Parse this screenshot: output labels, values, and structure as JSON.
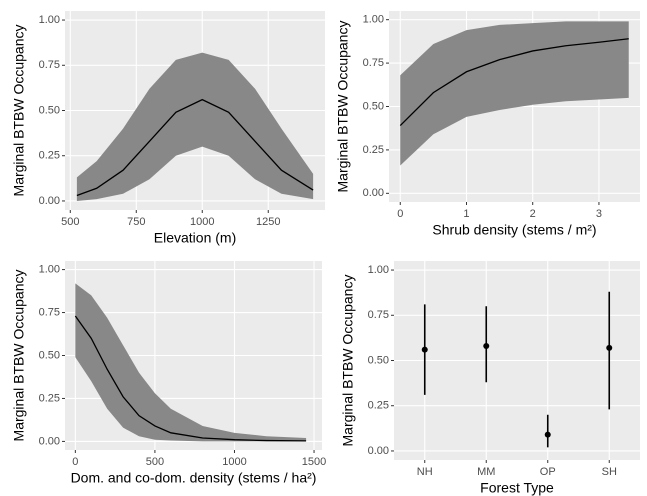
{
  "chart_data": [
    {
      "type": "line",
      "xlabel": "Elevation (m)",
      "ylabel": "Marginal BTBW Occupancy",
      "x": [
        525,
        600,
        700,
        800,
        900,
        1000,
        1100,
        1200,
        1300,
        1420
      ],
      "values": [
        0.03,
        0.07,
        0.17,
        0.33,
        0.49,
        0.56,
        0.49,
        0.33,
        0.17,
        0.06
      ],
      "lower": [
        0.0,
        0.01,
        0.04,
        0.12,
        0.25,
        0.3,
        0.25,
        0.12,
        0.04,
        0.01
      ],
      "upper": [
        0.13,
        0.22,
        0.4,
        0.62,
        0.78,
        0.82,
        0.78,
        0.62,
        0.4,
        0.15
      ],
      "color": "#000000",
      "band_color": "#888888",
      "xlim": [
        480,
        1465
      ],
      "xticks": [
        500,
        750,
        1000,
        1250
      ],
      "ylim": [
        -0.05,
        1.05
      ],
      "yticks": [
        {
          "value": 0,
          "label": "0.00"
        },
        {
          "value": 0.25,
          "label": "0.25"
        },
        {
          "value": 0.5,
          "label": "0.50"
        },
        {
          "value": 0.75,
          "label": "0.75"
        },
        {
          "value": 1,
          "label": "1.00"
        }
      ],
      "grid": true
    },
    {
      "type": "line",
      "xlabel": "Shrub density (stems / m²)",
      "ylabel": "Marginal BTBW Occupancy",
      "x": [
        0,
        0.5,
        1,
        1.5,
        2,
        2.5,
        3,
        3.45
      ],
      "values": [
        0.39,
        0.58,
        0.7,
        0.77,
        0.82,
        0.85,
        0.87,
        0.89
      ],
      "lower": [
        0.16,
        0.34,
        0.44,
        0.48,
        0.51,
        0.53,
        0.54,
        0.55
      ],
      "upper": [
        0.68,
        0.86,
        0.94,
        0.97,
        0.98,
        0.99,
        0.99,
        0.99
      ],
      "color": "#000000",
      "band_color": "#888888",
      "xlim": [
        -0.17,
        3.62
      ],
      "xticks": [
        0,
        1,
        2,
        3
      ],
      "ylim": [
        -0.05,
        1.05
      ],
      "yticks": [
        {
          "value": 0,
          "label": "0.00"
        },
        {
          "value": 0.25,
          "label": "0.25"
        },
        {
          "value": 0.5,
          "label": "0.50"
        },
        {
          "value": 0.75,
          "label": "0.75"
        },
        {
          "value": 1,
          "label": "1.00"
        }
      ],
      "grid": true
    },
    {
      "type": "line",
      "xlabel": "Dom. and co-dom. density (stems / ha²)",
      "ylabel": "Marginal BTBW Occupancy",
      "x": [
        0,
        100,
        200,
        300,
        400,
        500,
        600,
        800,
        1000,
        1200,
        1450
      ],
      "values": [
        0.73,
        0.6,
        0.42,
        0.26,
        0.15,
        0.09,
        0.05,
        0.02,
        0.01,
        0.005,
        0.003
      ],
      "lower": [
        0.49,
        0.35,
        0.19,
        0.08,
        0.03,
        0.01,
        0.005,
        0,
        0,
        0,
        0
      ],
      "upper": [
        0.92,
        0.85,
        0.72,
        0.56,
        0.4,
        0.28,
        0.19,
        0.09,
        0.05,
        0.03,
        0.02
      ],
      "color": "#000000",
      "band_color": "#888888",
      "xlim": [
        -65,
        1550
      ],
      "xticks": [
        0,
        500,
        1000,
        1500
      ],
      "ylim": [
        -0.05,
        1.05
      ],
      "yticks": [
        {
          "value": 0,
          "label": "0.00"
        },
        {
          "value": 0.25,
          "label": "0.25"
        },
        {
          "value": 0.5,
          "label": "0.50"
        },
        {
          "value": 0.75,
          "label": "0.75"
        },
        {
          "value": 1,
          "label": "1.00"
        }
      ],
      "grid": true
    },
    {
      "type": "pointrange",
      "xlabel": "Forest Type",
      "ylabel": "Marginal BTBW Occupancy",
      "categories": [
        "NH",
        "MM",
        "OP",
        "SH"
      ],
      "values": [
        0.56,
        0.58,
        0.09,
        0.57
      ],
      "lower": [
        0.31,
        0.38,
        0.02,
        0.23
      ],
      "upper": [
        0.81,
        0.8,
        0.2,
        0.88
      ],
      "color": "#000000",
      "ylim": [
        -0.05,
        1.05
      ],
      "yticks": [
        {
          "value": 0,
          "label": "0.00"
        },
        {
          "value": 0.25,
          "label": "0.25"
        },
        {
          "value": 0.5,
          "label": "0.50"
        },
        {
          "value": 0.75,
          "label": "0.75"
        },
        {
          "value": 1,
          "label": "1.00"
        }
      ],
      "grid": true
    }
  ]
}
